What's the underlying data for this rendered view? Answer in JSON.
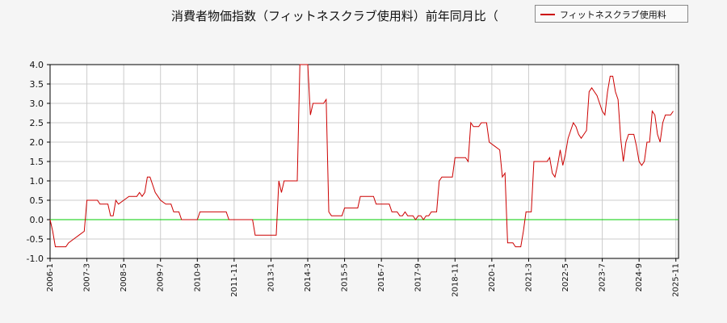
{
  "chart_data": {
    "type": "line",
    "title": "消費者物価指数（フィットネスクラブ使用料）前年同月比（",
    "xlabel": "",
    "ylabel": "",
    "ylim": [
      -1.0,
      4.0
    ],
    "yticks": [
      "4.0",
      "3.5",
      "3.0",
      "2.5",
      "2.0",
      "1.5",
      "1.0",
      "0.5",
      "0.0",
      "-0.5",
      "-1.0"
    ],
    "xlim": [
      2006.0,
      2025.917
    ],
    "xticks": [
      "2006-1",
      "2007-3",
      "2008-5",
      "2009-7",
      "2010-9",
      "2011-11",
      "2013-1",
      "2014-3",
      "2015-5",
      "2016-7",
      "2017-9",
      "2018-11",
      "2020-1",
      "2021-3",
      "2022-5",
      "2023-7",
      "2024-9",
      "2025-11"
    ],
    "grid": true,
    "legend_position": "top-right",
    "baseline": {
      "value": 0.0,
      "color": "#00cc00"
    },
    "series": [
      {
        "name": "フィットネスクラブ使用料",
        "color": "#cc0000",
        "points": [
          [
            2006.0,
            0.0
          ],
          [
            2006.083,
            -0.3
          ],
          [
            2006.167,
            -0.7
          ],
          [
            2006.5,
            -0.7
          ],
          [
            2006.583,
            -0.6
          ],
          [
            2006.75,
            -0.5
          ],
          [
            2006.917,
            -0.4
          ],
          [
            2007.083,
            -0.3
          ],
          [
            2007.167,
            0.5
          ],
          [
            2007.5,
            0.5
          ],
          [
            2007.583,
            0.4
          ],
          [
            2007.833,
            0.4
          ],
          [
            2007.917,
            0.1
          ],
          [
            2008.0,
            0.1
          ],
          [
            2008.083,
            0.5
          ],
          [
            2008.167,
            0.4
          ],
          [
            2008.333,
            0.5
          ],
          [
            2008.5,
            0.6
          ],
          [
            2008.75,
            0.6
          ],
          [
            2008.833,
            0.7
          ],
          [
            2008.917,
            0.6
          ],
          [
            2009.0,
            0.7
          ],
          [
            2009.083,
            1.1
          ],
          [
            2009.167,
            1.1
          ],
          [
            2009.333,
            0.7
          ],
          [
            2009.417,
            0.6
          ],
          [
            2009.5,
            0.5
          ],
          [
            2009.667,
            0.4
          ],
          [
            2009.833,
            0.4
          ],
          [
            2009.917,
            0.2
          ],
          [
            2010.083,
            0.2
          ],
          [
            2010.167,
            0.0
          ],
          [
            2010.667,
            0.0
          ],
          [
            2010.75,
            0.2
          ],
          [
            2011.583,
            0.2
          ],
          [
            2011.667,
            0.0
          ],
          [
            2012.417,
            0.0
          ],
          [
            2012.5,
            -0.4
          ],
          [
            2013.167,
            -0.4
          ],
          [
            2013.25,
            1.0
          ],
          [
            2013.333,
            0.7
          ],
          [
            2013.417,
            1.0
          ],
          [
            2013.833,
            1.0
          ],
          [
            2013.917,
            4.0
          ],
          [
            2014.167,
            4.0
          ],
          [
            2014.25,
            2.7
          ],
          [
            2014.333,
            3.0
          ],
          [
            2014.667,
            3.0
          ],
          [
            2014.75,
            3.1
          ],
          [
            2014.833,
            0.2
          ],
          [
            2014.917,
            0.1
          ],
          [
            2015.25,
            0.1
          ],
          [
            2015.333,
            0.3
          ],
          [
            2015.75,
            0.3
          ],
          [
            2015.833,
            0.6
          ],
          [
            2016.25,
            0.6
          ],
          [
            2016.333,
            0.4
          ],
          [
            2016.75,
            0.4
          ],
          [
            2016.833,
            0.2
          ],
          [
            2017.0,
            0.2
          ],
          [
            2017.083,
            0.1
          ],
          [
            2017.167,
            0.1
          ],
          [
            2017.25,
            0.2
          ],
          [
            2017.333,
            0.1
          ],
          [
            2017.5,
            0.1
          ],
          [
            2017.583,
            0.0
          ],
          [
            2017.667,
            0.1
          ],
          [
            2017.75,
            0.1
          ],
          [
            2017.833,
            0.0
          ],
          [
            2017.917,
            0.1
          ],
          [
            2018.0,
            0.1
          ],
          [
            2018.083,
            0.2
          ],
          [
            2018.25,
            0.2
          ],
          [
            2018.333,
            1.0
          ],
          [
            2018.417,
            1.1
          ],
          [
            2018.75,
            1.1
          ],
          [
            2018.833,
            1.6
          ],
          [
            2019.167,
            1.6
          ],
          [
            2019.25,
            1.5
          ],
          [
            2019.333,
            2.5
          ],
          [
            2019.417,
            2.4
          ],
          [
            2019.583,
            2.4
          ],
          [
            2019.667,
            2.5
          ],
          [
            2019.833,
            2.5
          ],
          [
            2019.917,
            2.0
          ],
          [
            2020.083,
            1.9
          ],
          [
            2020.25,
            1.8
          ],
          [
            2020.333,
            1.1
          ],
          [
            2020.417,
            1.2
          ],
          [
            2020.5,
            -0.6
          ],
          [
            2020.667,
            -0.6
          ],
          [
            2020.75,
            -0.7
          ],
          [
            2020.917,
            -0.7
          ],
          [
            2021.0,
            -0.3
          ],
          [
            2021.083,
            0.2
          ],
          [
            2021.25,
            0.2
          ],
          [
            2021.333,
            1.5
          ],
          [
            2021.75,
            1.5
          ],
          [
            2021.833,
            1.6
          ],
          [
            2021.917,
            1.2
          ],
          [
            2022.0,
            1.1
          ],
          [
            2022.083,
            1.4
          ],
          [
            2022.167,
            1.8
          ],
          [
            2022.25,
            1.4
          ],
          [
            2022.333,
            1.7
          ],
          [
            2022.417,
            2.1
          ],
          [
            2022.5,
            2.3
          ],
          [
            2022.583,
            2.5
          ],
          [
            2022.667,
            2.4
          ],
          [
            2022.75,
            2.2
          ],
          [
            2022.833,
            2.1
          ],
          [
            2022.917,
            2.2
          ],
          [
            2023.0,
            2.3
          ],
          [
            2023.083,
            3.3
          ],
          [
            2023.167,
            3.4
          ],
          [
            2023.25,
            3.3
          ],
          [
            2023.333,
            3.2
          ],
          [
            2023.417,
            3.0
          ],
          [
            2023.5,
            2.8
          ],
          [
            2023.583,
            2.7
          ],
          [
            2023.667,
            3.3
          ],
          [
            2023.75,
            3.7
          ],
          [
            2023.833,
            3.7
          ],
          [
            2023.917,
            3.3
          ],
          [
            2024.0,
            3.1
          ],
          [
            2024.083,
            2.1
          ],
          [
            2024.167,
            1.5
          ],
          [
            2024.25,
            2.0
          ],
          [
            2024.333,
            2.2
          ],
          [
            2024.5,
            2.2
          ],
          [
            2024.583,
            1.9
          ],
          [
            2024.667,
            1.5
          ],
          [
            2024.75,
            1.4
          ],
          [
            2024.833,
            1.5
          ],
          [
            2024.917,
            2.0
          ],
          [
            2025.0,
            2.0
          ],
          [
            2025.083,
            2.8
          ],
          [
            2025.167,
            2.7
          ],
          [
            2025.25,
            2.2
          ],
          [
            2025.333,
            2.0
          ],
          [
            2025.417,
            2.5
          ],
          [
            2025.5,
            2.7
          ],
          [
            2025.667,
            2.7
          ],
          [
            2025.75,
            2.8
          ]
        ]
      }
    ]
  }
}
